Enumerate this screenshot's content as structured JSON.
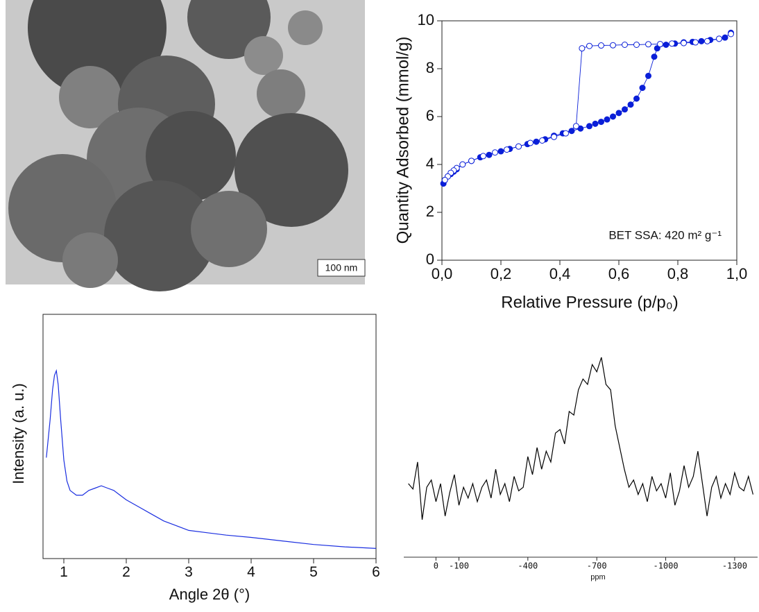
{
  "image": {
    "scale_bar": "100 nm"
  },
  "chart_data": [
    {
      "type": "line",
      "x_label": "Relative Pressure (p/p₀)",
      "y_label": "Quantity Adsorbed (mmol/g)",
      "annotation": "BET SSA: 420 m² g⁻¹",
      "xlim": [
        0,
        1
      ],
      "ylim": [
        0,
        10
      ],
      "xticks": [
        {
          "value": 0,
          "label": "0,0"
        },
        {
          "value": 0.2,
          "label": "0,2"
        },
        {
          "value": 0.4,
          "label": "0,4"
        },
        {
          "value": 0.6,
          "label": "0,6"
        },
        {
          "value": 0.8,
          "label": "0,8"
        },
        {
          "value": 1,
          "label": "1,0"
        }
      ],
      "yticks": [
        0,
        2,
        4,
        6,
        8,
        10
      ],
      "series": [
        {
          "color": "#0a1fd8",
          "marker": "filled",
          "x": [
            0.005,
            0.01,
            0.02,
            0.03,
            0.04,
            0.05,
            0.07,
            0.1,
            0.13,
            0.16,
            0.2,
            0.23,
            0.26,
            0.29,
            0.32,
            0.35,
            0.38,
            0.41,
            0.44,
            0.47,
            0.5,
            0.52,
            0.54,
            0.56,
            0.58,
            0.6,
            0.62,
            0.64,
            0.66,
            0.68,
            0.7,
            0.72,
            0.73,
            0.76,
            0.79,
            0.82,
            0.85,
            0.88,
            0.91,
            0.94,
            0.96,
            0.98
          ],
          "values": [
            3.2,
            3.35,
            3.5,
            3.6,
            3.7,
            3.8,
            4.0,
            4.15,
            4.3,
            4.4,
            4.55,
            4.65,
            4.75,
            4.85,
            4.95,
            5.05,
            5.2,
            5.3,
            5.4,
            5.5,
            5.6,
            5.7,
            5.78,
            5.88,
            6.0,
            6.15,
            6.3,
            6.5,
            6.75,
            7.2,
            7.7,
            8.5,
            8.85,
            9.0,
            9.05,
            9.1,
            9.12,
            9.15,
            9.2,
            9.25,
            9.3,
            9.5
          ]
        },
        {
          "color": "#0a1fd8",
          "marker": "open",
          "x": [
            0.98,
            0.94,
            0.9,
            0.86,
            0.82,
            0.78,
            0.74,
            0.7,
            0.66,
            0.62,
            0.58,
            0.54,
            0.5,
            0.475,
            0.455,
            0.42,
            0.38,
            0.34,
            0.3,
            0.26,
            0.22,
            0.18,
            0.14,
            0.1,
            0.07,
            0.05,
            0.04,
            0.03,
            0.02,
            0.01
          ],
          "values": [
            9.45,
            9.25,
            9.15,
            9.1,
            9.07,
            9.05,
            9.03,
            9.02,
            9.0,
            9.0,
            8.98,
            8.97,
            8.95,
            8.85,
            5.6,
            5.3,
            5.15,
            5.0,
            4.9,
            4.75,
            4.62,
            4.5,
            4.35,
            4.15,
            4.0,
            3.85,
            3.75,
            3.65,
            3.5,
            3.35
          ]
        }
      ]
    },
    {
      "type": "line",
      "x_label": "Angle 2θ (°)",
      "y_label": "Intensity (a. u.)",
      "xlim": [
        0.7,
        6
      ],
      "ylim": [
        -4,
        100
      ],
      "xticks": [
        1,
        2,
        3,
        4,
        5,
        6
      ],
      "series": [
        {
          "color": "#1a2ee0",
          "x": [
            0.72,
            0.78,
            0.82,
            0.85,
            0.88,
            0.91,
            0.95,
            1.0,
            1.05,
            1.1,
            1.2,
            1.3,
            1.4,
            1.5,
            1.6,
            1.7,
            1.8,
            1.9,
            2.0,
            2.2,
            2.4,
            2.6,
            2.8,
            3.0,
            3.3,
            3.6,
            4.0,
            4.5,
            5.0,
            5.5,
            6.0
          ],
          "values": [
            39,
            55,
            68,
            74,
            76,
            70,
            55,
            38,
            29,
            25,
            23,
            23,
            25,
            26,
            27,
            26,
            25,
            23,
            21,
            18,
            15,
            12,
            10,
            8,
            7,
            6,
            5,
            3.5,
            2,
            1,
            0.3
          ]
        }
      ]
    },
    {
      "type": "line",
      "x_label": "ppm",
      "xlim": [
        140,
        -1400
      ],
      "ylim": [
        0,
        100
      ],
      "xticks": [
        0,
        -100,
        -400,
        -700,
        -1000,
        -1300
      ],
      "series": [
        {
          "color": "#000000",
          "x": [
            120,
            100,
            80,
            60,
            40,
            20,
            0,
            -20,
            -40,
            -60,
            -80,
            -100,
            -120,
            -140,
            -160,
            -180,
            -200,
            -220,
            -240,
            -260,
            -280,
            -300,
            -320,
            -340,
            -360,
            -380,
            -400,
            -420,
            -440,
            -460,
            -480,
            -500,
            -520,
            -540,
            -560,
            -580,
            -600,
            -620,
            -640,
            -660,
            -680,
            -700,
            -720,
            -740,
            -760,
            -780,
            -800,
            -820,
            -840,
            -860,
            -880,
            -900,
            -920,
            -940,
            -960,
            -980,
            -1000,
            -1020,
            -1040,
            -1060,
            -1080,
            -1100,
            -1120,
            -1140,
            -1160,
            -1180,
            -1200,
            -1220,
            -1240,
            -1260,
            -1280,
            -1300,
            -1320,
            -1340,
            -1360,
            -1380
          ],
          "values": [
            30,
            27,
            42,
            10,
            28,
            32,
            20,
            30,
            12,
            25,
            35,
            18,
            28,
            22,
            30,
            20,
            28,
            32,
            22,
            38,
            24,
            30,
            20,
            34,
            26,
            28,
            45,
            35,
            50,
            38,
            48,
            42,
            58,
            60,
            52,
            70,
            68,
            82,
            88,
            85,
            96,
            92,
            100,
            85,
            82,
            62,
            50,
            38,
            28,
            32,
            24,
            30,
            20,
            34,
            26,
            30,
            22,
            36,
            18,
            26,
            40,
            28,
            34,
            48,
            30,
            12,
            28,
            34,
            22,
            30,
            24,
            36,
            28,
            26,
            34,
            24
          ]
        }
      ]
    }
  ]
}
